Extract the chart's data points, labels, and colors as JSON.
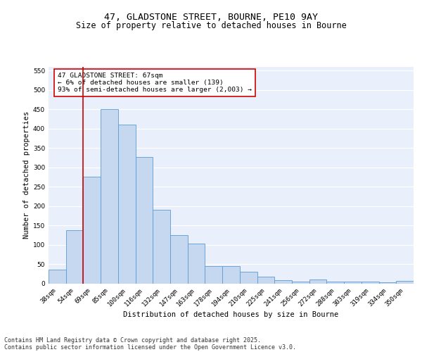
{
  "title_line1": "47, GLADSTONE STREET, BOURNE, PE10 9AY",
  "title_line2": "Size of property relative to detached houses in Bourne",
  "xlabel": "Distribution of detached houses by size in Bourne",
  "ylabel": "Number of detached properties",
  "categories": [
    "38sqm",
    "54sqm",
    "69sqm",
    "85sqm",
    "100sqm",
    "116sqm",
    "132sqm",
    "147sqm",
    "163sqm",
    "178sqm",
    "194sqm",
    "210sqm",
    "225sqm",
    "241sqm",
    "256sqm",
    "272sqm",
    "288sqm",
    "303sqm",
    "319sqm",
    "334sqm",
    "350sqm"
  ],
  "values": [
    35,
    137,
    275,
    450,
    410,
    327,
    190,
    125,
    103,
    45,
    45,
    30,
    18,
    8,
    5,
    10,
    5,
    5,
    4,
    3,
    6
  ],
  "bar_color": "#c5d8f0",
  "bar_edge_color": "#5b9bd5",
  "vline_x": 1.5,
  "vline_color": "#cc0000",
  "annotation_text": "47 GLADSTONE STREET: 67sqm\n← 6% of detached houses are smaller (139)\n93% of semi-detached houses are larger (2,003) →",
  "ylim": [
    0,
    560
  ],
  "yticks": [
    0,
    50,
    100,
    150,
    200,
    250,
    300,
    350,
    400,
    450,
    500,
    550
  ],
  "background_color": "#eaf0fb",
  "grid_color": "#ffffff",
  "footer_line1": "Contains HM Land Registry data © Crown copyright and database right 2025.",
  "footer_line2": "Contains public sector information licensed under the Open Government Licence v3.0.",
  "title_fontsize": 9.5,
  "subtitle_fontsize": 8.5,
  "axis_label_fontsize": 7.5,
  "tick_fontsize": 6.5,
  "annotation_fontsize": 6.8,
  "footer_fontsize": 6.0
}
